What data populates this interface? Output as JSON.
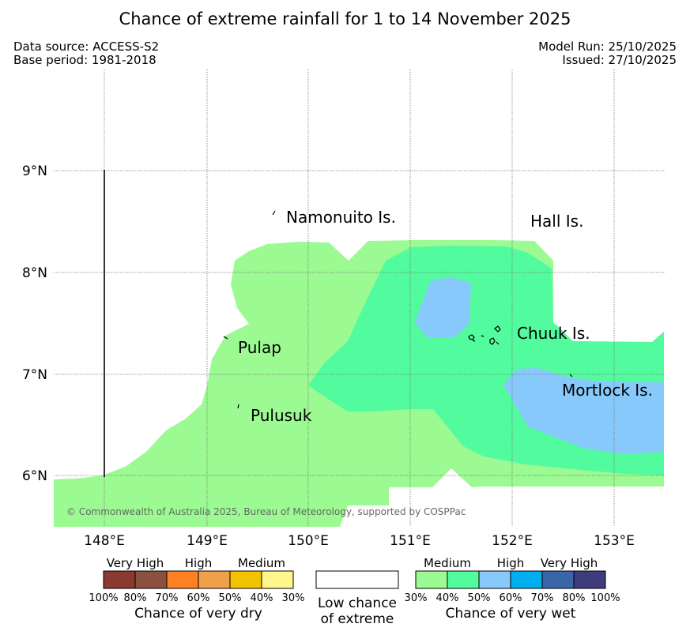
{
  "title": "Chance of extreme rainfall for 1 to 14 November 2025",
  "meta": {
    "source": "Data source: ACCESS-S2",
    "base_period": "Base period: 1981-2018",
    "model_run": "Model Run: 25/10/2025",
    "issued": "Issued: 27/10/2025"
  },
  "map": {
    "lat_labels": [
      "9°N",
      "8°N",
      "7°N",
      "6°N"
    ],
    "lon_labels": [
      "148°E",
      "149°E",
      "150°E",
      "151°E",
      "152°E",
      "153°E"
    ],
    "places": [
      "Namonuito Is.",
      "Hall Is.",
      "Pulap",
      "Chuuk Is.",
      "Mortlock Is.",
      "Pulusuk"
    ],
    "copyright": "© Commonwealth of Australia 2025, Bureau of Meteorology, supported by COSPPac",
    "colors": {
      "wet_30": "#9bfa91",
      "wet_40": "#52fb9e",
      "wet_50": "#87c9fa",
      "grid": "#777777"
    }
  },
  "legend": {
    "dry": {
      "categories": [
        "Very High",
        "High",
        "Medium"
      ],
      "ticks": [
        "100%",
        "80%",
        "70%",
        "60%",
        "50%",
        "40%",
        "30%"
      ],
      "colors": [
        "#8b3a32",
        "#8b5040",
        "#ff8022",
        "#f0a048",
        "#f2c400",
        "#fff68c"
      ],
      "caption": "Chance of very dry"
    },
    "neutral": {
      "line1": "Low chance",
      "line2": "of extreme"
    },
    "wet": {
      "categories": [
        "Medium",
        "High",
        "Very High"
      ],
      "ticks": [
        "30%",
        "40%",
        "50%",
        "60%",
        "70%",
        "80%",
        "100%"
      ],
      "colors": [
        "#9bfa91",
        "#52fb9e",
        "#87c9fa",
        "#00aeef",
        "#3a65a8",
        "#3e3c7a"
      ],
      "caption": "Chance of very wet"
    }
  }
}
